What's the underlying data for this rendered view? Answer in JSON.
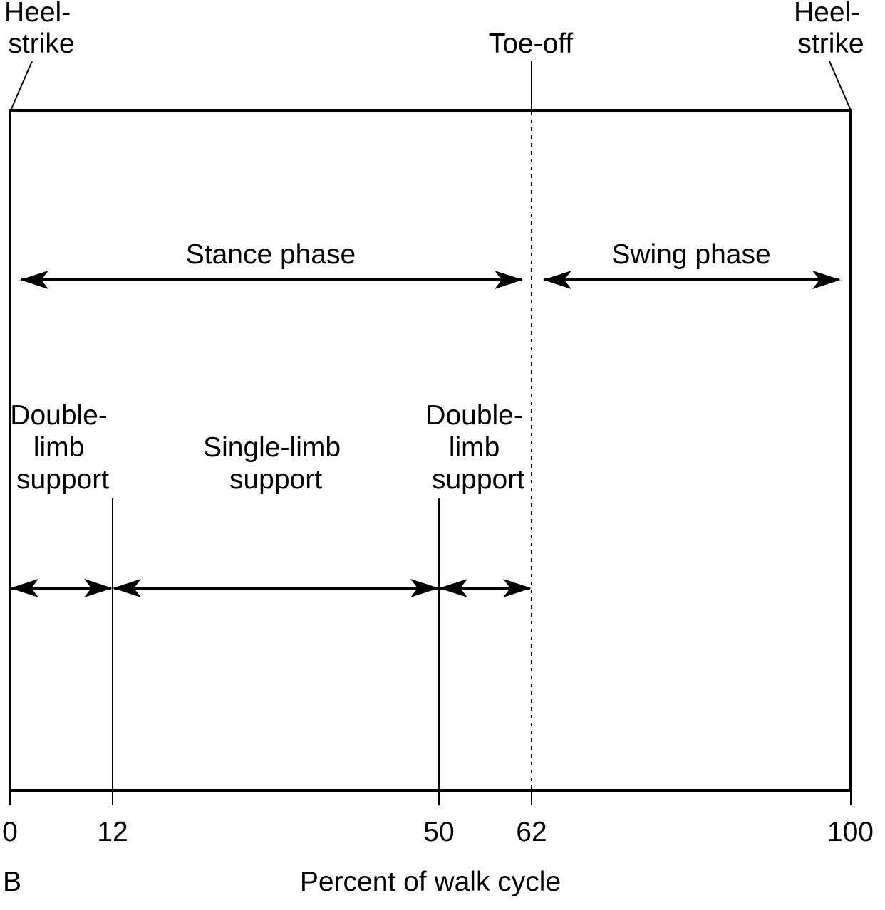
{
  "events": {
    "heel_strike_left": [
      "Heel-",
      "strike"
    ],
    "toe_off": "Toe-off",
    "heel_strike_right": [
      "Heel-",
      "strike"
    ]
  },
  "phases": {
    "stance": "Stance phase",
    "swing": "Swing phase"
  },
  "support": {
    "double_first": [
      "Double-",
      "limb",
      "support"
    ],
    "single": [
      "Single-limb",
      "support"
    ],
    "double_second": [
      "Double-",
      "limb",
      "support"
    ]
  },
  "axis": {
    "ticks": [
      "0",
      "12",
      "50",
      "62",
      "100"
    ],
    "label": "Percent of walk cycle"
  },
  "panel_label": "B",
  "colors": {
    "ink": "#000000",
    "background": "#ffffff"
  }
}
